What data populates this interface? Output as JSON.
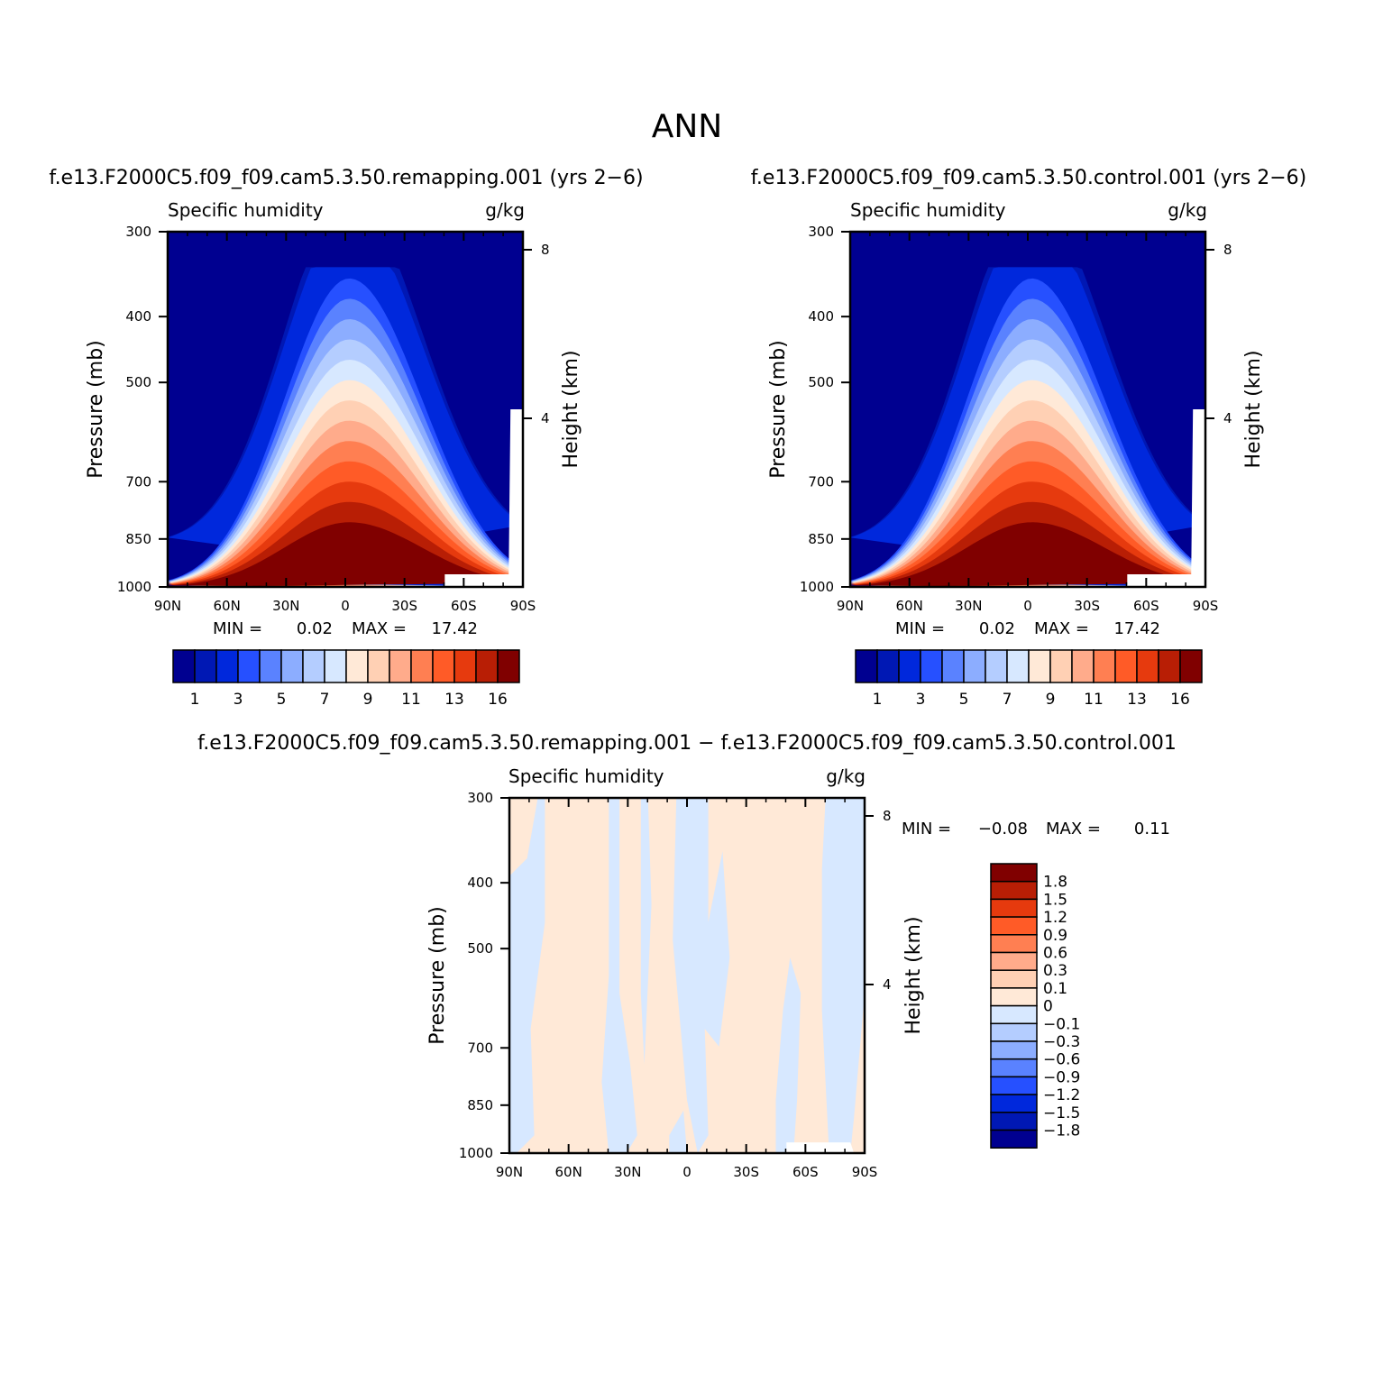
{
  "figure": {
    "title": "ANN"
  },
  "colors": {
    "levels": [
      "#000090",
      "#0018b4",
      "#0028dc",
      "#2650ff",
      "#5a82ff",
      "#8cadff",
      "#b4cdff",
      "#d7e8ff",
      "#ffe9d7",
      "#ffd0b4",
      "#ffab8b",
      "#ff7f52",
      "#ff5b27",
      "#e63a0e",
      "#b81e05",
      "#800000"
    ],
    "diff_levels": [
      "#000090",
      "#0018b4",
      "#0028dc",
      "#2650ff",
      "#5a82ff",
      "#8cadff",
      "#b4cdff",
      "#d7e8ff",
      "#ffe9d7",
      "#ffd0b4",
      "#ffab8b",
      "#ff7f52",
      "#ff5b27",
      "#e63a0e",
      "#b81e05",
      "#800000"
    ]
  },
  "chart_data": [
    {
      "type": "heatmap",
      "title": "f.e13.F2000C5.f09_f09.cam5.3.50.remapping.001 (yrs 2-6)",
      "subtitle_left": "Specific humidity",
      "subtitle_right": "g/kg",
      "ylabel": "Pressure (mb)",
      "ylabel_right": "Height (km)",
      "x_ticks": [
        "90N",
        "60N",
        "30N",
        "0",
        "30S",
        "60S",
        "90S"
      ],
      "y_ticks": [
        "300",
        "400",
        "500",
        "700",
        "850",
        "1000"
      ],
      "y_ticks_right": [
        "8",
        "4"
      ],
      "ylim": [
        1000,
        300
      ],
      "min_label": "MIN =",
      "min_value": "0.02",
      "max_label": "MAX =",
      "max_value": "17.42",
      "colorbar_labels": [
        "1",
        "3",
        "5",
        "7",
        "9",
        "11",
        "13",
        "16"
      ],
      "peak_lat": -2
    },
    {
      "type": "heatmap",
      "title": "f.e13.F2000C5.f09_f09.cam5.3.50.control.001 (yrs 2-6)",
      "subtitle_left": "Specific humidity",
      "subtitle_right": "g/kg",
      "ylabel": "Pressure (mb)",
      "ylabel_right": "Height (km)",
      "x_ticks": [
        "90N",
        "60N",
        "30N",
        "0",
        "30S",
        "60S",
        "90S"
      ],
      "y_ticks": [
        "300",
        "400",
        "500",
        "700",
        "850",
        "1000"
      ],
      "y_ticks_right": [
        "8",
        "4"
      ],
      "ylim": [
        1000,
        300
      ],
      "min_label": "MIN =",
      "min_value": "0.02",
      "max_label": "MAX =",
      "max_value": "17.42",
      "colorbar_labels": [
        "1",
        "3",
        "5",
        "7",
        "9",
        "11",
        "13",
        "16"
      ],
      "peak_lat": -2
    },
    {
      "type": "heatmap",
      "title": "f.e13.F2000C5.f09_f09.cam5.3.50.remapping.001 - f.e13.F2000C5.f09_f09.cam5.3.50.control.001",
      "subtitle_left": "Specific humidity",
      "subtitle_right": "g/kg",
      "ylabel": "Pressure (mb)",
      "ylabel_right": "Height (km)",
      "x_ticks": [
        "90N",
        "60N",
        "30N",
        "0",
        "30S",
        "60S",
        "90S"
      ],
      "y_ticks": [
        "300",
        "400",
        "500",
        "700",
        "850",
        "1000"
      ],
      "y_ticks_right": [
        "8",
        "4"
      ],
      "ylim": [
        1000,
        300
      ],
      "min_label": "MIN =",
      "min_value": "-0.08",
      "max_label": "MAX =",
      "max_value": "0.11",
      "colorbar_labels": [
        "1.8",
        "1.5",
        "1.2",
        "0.9",
        "0.6",
        "0.3",
        "0.1",
        "0",
        "-0.1",
        "-0.3",
        "-0.6",
        "-0.9",
        "-1.2",
        "-1.5",
        "-1.8"
      ],
      "value_range": [
        -0.08,
        0.11
      ]
    }
  ]
}
